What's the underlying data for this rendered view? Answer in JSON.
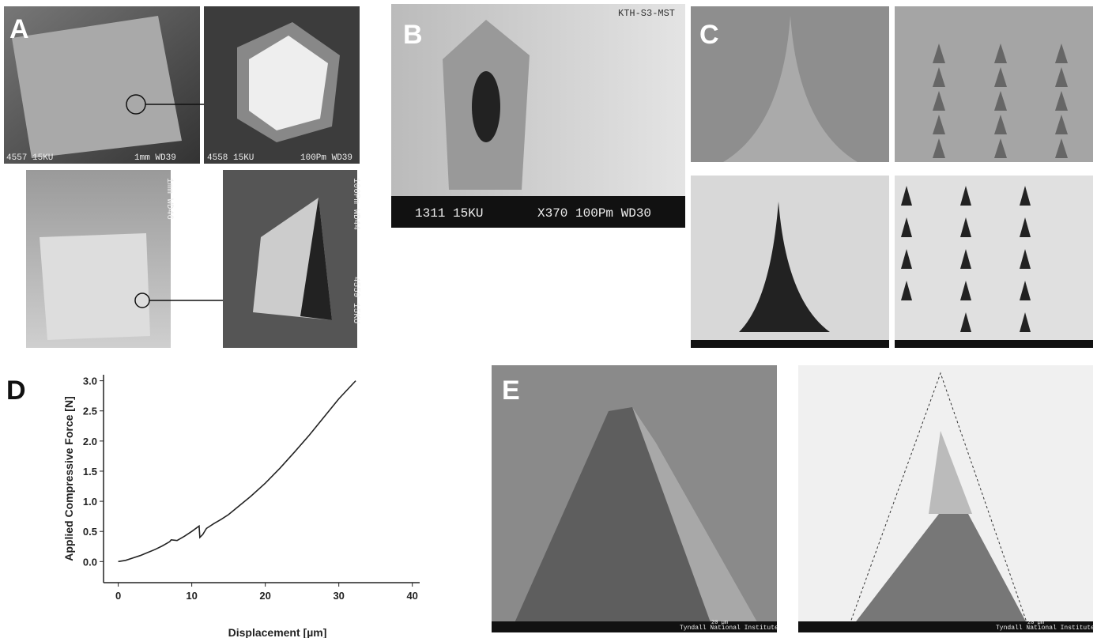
{
  "panels": [
    {
      "label": "A",
      "texts": [
        "4557  15KU",
        "1mm WD39",
        "4558  15KU",
        "100Pm WD39",
        "1mm WD46",
        "100Pm WD44",
        "4559 15KU"
      ]
    },
    {
      "label": "B",
      "texts": [
        "KTH-S3-MST",
        "1311  15KU",
        "X370 100Pm WD30"
      ]
    },
    {
      "label": "C",
      "texts": []
    },
    {
      "label": "D",
      "texts": []
    },
    {
      "label": "E",
      "texts": [
        "Tyndall National Institute",
        "20 µm",
        "Tyndall National Institute",
        "20 µm"
      ]
    }
  ],
  "chart_data": {
    "type": "line",
    "xlabel": "Displacement [µm]",
    "ylabel": "Applied Compressive Force [N]",
    "x": [
      0,
      1,
      2,
      3,
      4,
      5,
      6,
      7,
      7.2,
      8,
      9,
      10,
      11,
      11.1,
      11.5,
      12,
      13,
      14,
      15,
      16,
      18,
      20,
      22,
      24,
      26,
      28,
      30,
      32.3
    ],
    "values": [
      0,
      0.02,
      0.06,
      0.1,
      0.15,
      0.2,
      0.26,
      0.33,
      0.36,
      0.35,
      0.42,
      0.5,
      0.59,
      0.4,
      0.45,
      0.55,
      0.63,
      0.7,
      0.78,
      0.88,
      1.08,
      1.3,
      1.55,
      1.82,
      2.1,
      2.4,
      2.7,
      3.0
    ],
    "color": "#222222",
    "xlim": [
      -2,
      41
    ],
    "ylim": [
      -0.35,
      3.1
    ],
    "xticks": [
      0,
      10,
      20,
      30,
      40
    ],
    "yticks": [
      {
        "value": 0,
        "label": "0.0"
      },
      0.5,
      {
        "value": 1,
        "label": "1.0"
      },
      1.5,
      {
        "value": 2,
        "label": "2.0"
      },
      2.5,
      {
        "value": 3,
        "label": "3.0"
      }
    ]
  }
}
